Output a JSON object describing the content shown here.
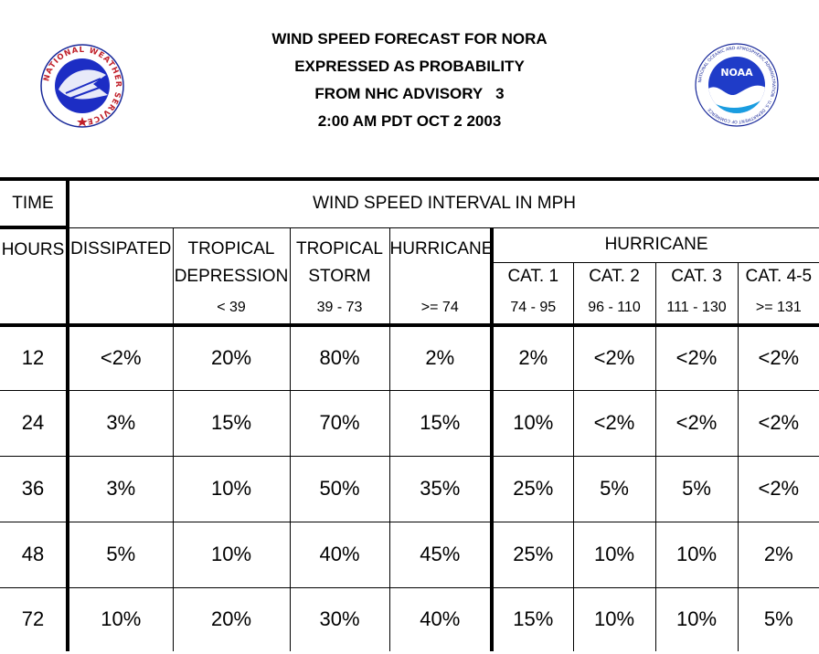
{
  "title": {
    "line1": "WIND SPEED FORECAST FOR NORA",
    "line2": "EXPRESSED AS PROBABILITY",
    "line3": "FROM NHC ADVISORY   3",
    "line4": "2:00 AM PDT OCT 2 2003"
  },
  "logos": {
    "nws_text": "NATIONAL WEATHER SERVICE",
    "noaa_text": "NOAA",
    "noaa_ring_text": "NATIONAL OCEANIC AND ATMOSPHERIC ADMINISTRATION · U.S. DEPARTMENT OF COMMERCE"
  },
  "table": {
    "time_label": "TIME",
    "interval_label": "WIND SPEED INTERVAL IN MPH",
    "hours_label": "HOURS",
    "dissipated_label": "DISSIPATED",
    "td_line1": "TROPICAL",
    "td_line2": "DEPRESSION",
    "td_range": "< 39",
    "ts_line1": "TROPICAL",
    "ts_line2": "STORM",
    "ts_range": "39 - 73",
    "hurricane_label": "HURRICANE",
    "hurricane_range": ">= 74",
    "hurricane_group_label": "HURRICANE",
    "cat1_label": "CAT. 1",
    "cat1_range": "74 - 95",
    "cat2_label": "CAT. 2",
    "cat2_range": "96 - 110",
    "cat3_label": "CAT. 3",
    "cat3_range": "111 - 130",
    "cat45_label": "CAT. 4-5",
    "cat45_range": ">= 131",
    "rows": [
      {
        "hours": "12",
        "dissipated": "<2%",
        "td": "20%",
        "ts": "80%",
        "hurricane": "2%",
        "cat1": "2%",
        "cat2": "<2%",
        "cat3": "<2%",
        "cat45": "<2%"
      },
      {
        "hours": "24",
        "dissipated": "3%",
        "td": "15%",
        "ts": "70%",
        "hurricane": "15%",
        "cat1": "10%",
        "cat2": "<2%",
        "cat3": "<2%",
        "cat45": "<2%"
      },
      {
        "hours": "36",
        "dissipated": "3%",
        "td": "10%",
        "ts": "50%",
        "hurricane": "35%",
        "cat1": "25%",
        "cat2": "5%",
        "cat3": "5%",
        "cat45": "<2%"
      },
      {
        "hours": "48",
        "dissipated": "5%",
        "td": "10%",
        "ts": "40%",
        "hurricane": "45%",
        "cat1": "25%",
        "cat2": "10%",
        "cat3": "10%",
        "cat45": "2%"
      },
      {
        "hours": "72",
        "dissipated": "10%",
        "td": "20%",
        "ts": "30%",
        "hurricane": "40%",
        "cat1": "15%",
        "cat2": "10%",
        "cat3": "10%",
        "cat45": "5%"
      }
    ]
  }
}
